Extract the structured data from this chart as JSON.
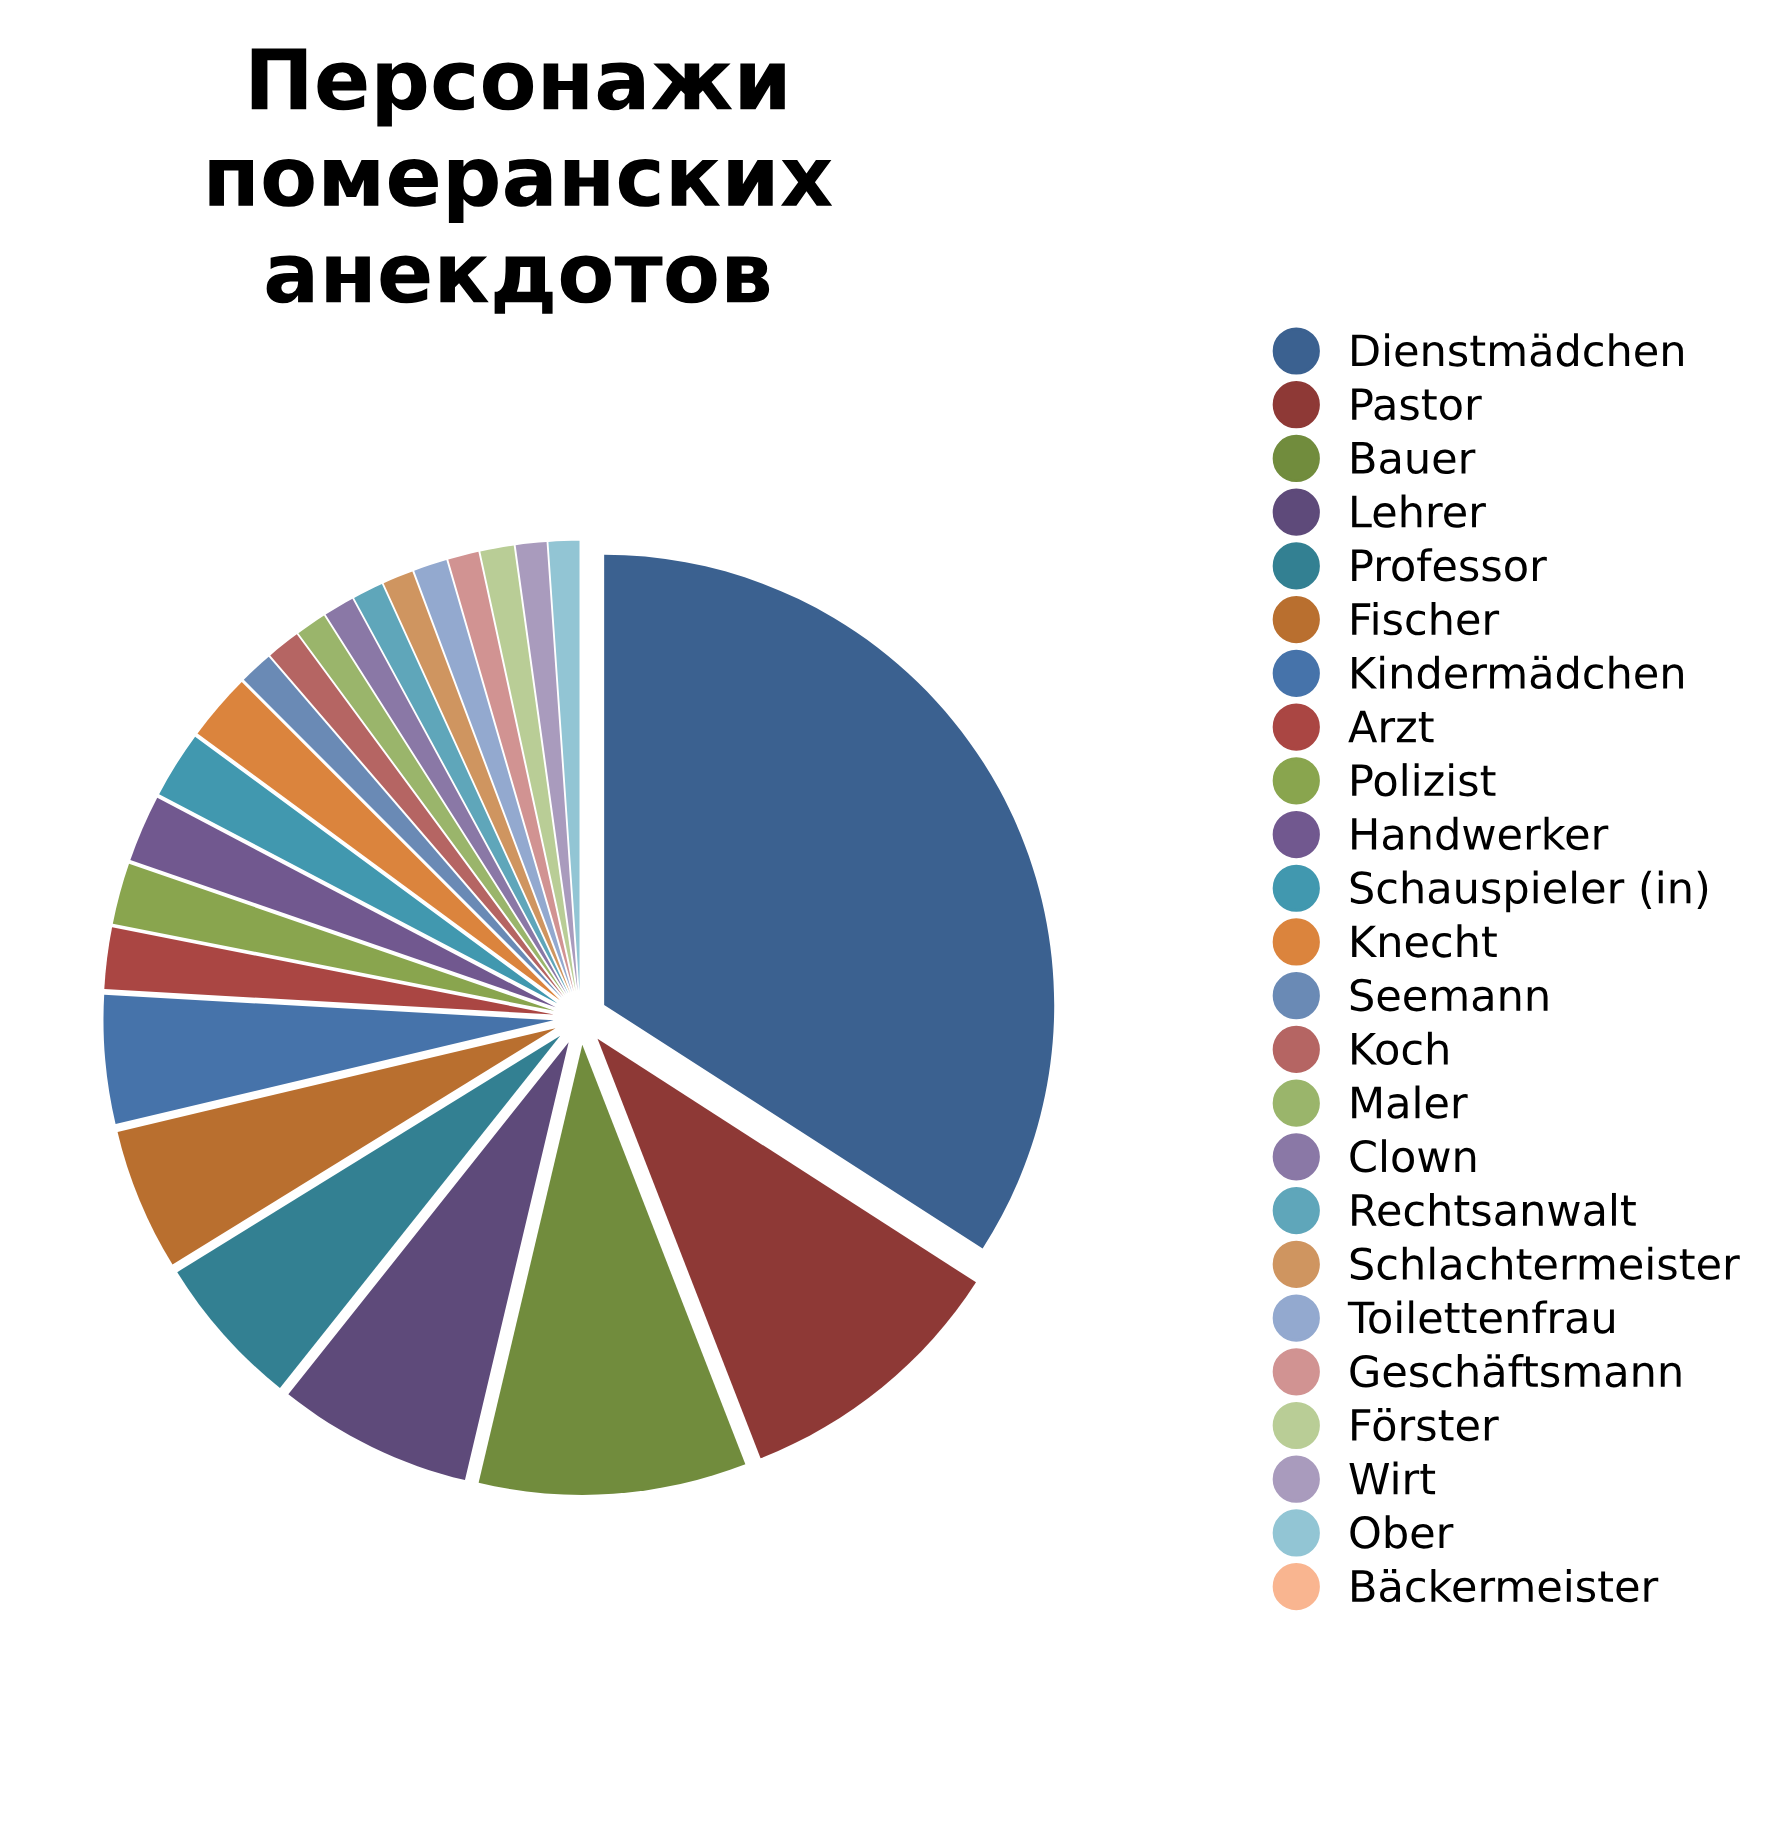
{
  "chart_data": {
    "type": "pie",
    "title": "Персонажи\nпомеранских\nанекдотов",
    "categories": [
      "Dienstmädchen",
      "Pastor",
      "Bauer",
      "Lehrer",
      "Professor",
      "Fischer",
      "Kindermädchen",
      "Arzt",
      "Polizist",
      "Handwerker",
      "Schauspieler (in)",
      "Knecht",
      "Seemann",
      "Koch",
      "Maler",
      "Clown",
      "Rechtsanwalt",
      "Schlachtermeister",
      "Toilettenfrau",
      "Geschäftsmann",
      "Förster",
      "Wirt",
      "Ober",
      "Bäckermeister"
    ],
    "values": [
      34.1,
      10,
      9.6,
      7,
      5.5,
      5.1,
      4.6,
      2.2,
      2.2,
      2.4,
      2.4,
      2.4,
      1.2,
      1.2,
      1.1,
      1.1,
      1.1,
      1.1,
      1.2,
      1.1,
      1.2,
      1.1,
      1.1,
      0
    ],
    "colors": [
      "#3b6190",
      "#8e3936",
      "#718c3d",
      "#5e4a7a",
      "#338092",
      "#b96f2f",
      "#4673aa",
      "#aa4643",
      "#89a54e",
      "#71588f",
      "#4198af",
      "#db843d",
      "#6a8ab5",
      "#b56563",
      "#9ab56b",
      "#8a78a6",
      "#5fa6ba",
      "#cf9560",
      "#93a9cf",
      "#d19392",
      "#b9cd96",
      "#a99bbd",
      "#92c5d4",
      "#f9b590"
    ],
    "legend": "right"
  }
}
